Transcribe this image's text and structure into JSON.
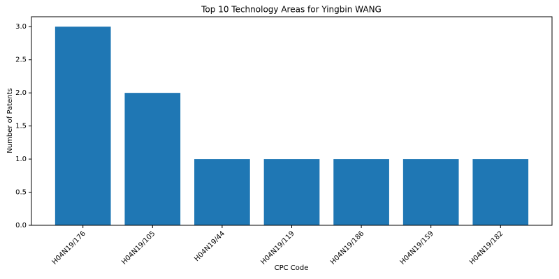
{
  "chart_data": {
    "type": "bar",
    "title": "Top 10 Technology Areas for Yingbin WANG",
    "x_label": "CPC Code",
    "y_label": "Number of Patents",
    "categories": [
      "H04N19/176",
      "H04N19/105",
      "H04N19/44",
      "H04N19/119",
      "H04N19/186",
      "H04N19/159",
      "H04N19/182"
    ],
    "values": [
      3,
      2,
      1,
      1,
      1,
      1,
      1
    ],
    "color": "#1f77b4",
    "ylim": [
      0,
      3.15
    ],
    "yticks": [
      {
        "value": 0,
        "label": "0.0"
      },
      0.5,
      {
        "value": 1,
        "label": "1.0"
      },
      1.5,
      {
        "value": 2,
        "label": "2.0"
      },
      2.5,
      {
        "value": 3,
        "label": "3.0"
      }
    ],
    "grid": false
  }
}
